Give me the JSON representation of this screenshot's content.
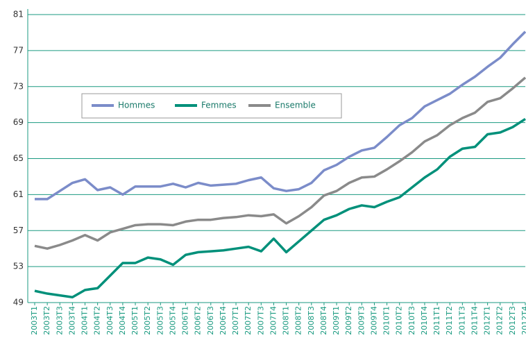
{
  "chart_data": {
    "type": "line",
    "categories": [
      "2003T1",
      "2003T2",
      "2003T3",
      "2003T4",
      "2004T1",
      "2004T2",
      "2004T3",
      "2004T4",
      "2005T1",
      "2005T2",
      "2005T3",
      "2005T4",
      "2006T1",
      "2006T2",
      "2006T3",
      "2006T4",
      "2007T1",
      "2007T2",
      "2007T3",
      "2007T4",
      "2008T1",
      "2008T2",
      "2008T3",
      "2008T4",
      "2009T1",
      "2009T2",
      "2009T3",
      "2009T4",
      "2010T1",
      "2010T2",
      "2010T3",
      "2010T4",
      "2011T1",
      "2011T2",
      "2011T3",
      "2011T4",
      "2012T1",
      "2012T2",
      "2012T3",
      "2012T4"
    ],
    "series": [
      {
        "name": "Hommes",
        "color": "#7b8cc9",
        "values": [
          60.5,
          60.5,
          61.4,
          62.3,
          62.7,
          61.5,
          61.8,
          61.0,
          61.9,
          61.9,
          61.9,
          62.2,
          61.8,
          62.3,
          62.0,
          62.1,
          62.2,
          62.6,
          62.9,
          61.7,
          61.4,
          61.6,
          62.3,
          63.7,
          64.3,
          65.2,
          65.9,
          66.2,
          67.4,
          68.7,
          69.5,
          70.8,
          71.5,
          72.2,
          73.2,
          74.1,
          75.2,
          76.2,
          77.7,
          79.1
        ]
      },
      {
        "name": "Femmes",
        "color": "#00907a",
        "values": [
          50.3,
          50.0,
          49.8,
          49.6,
          50.4,
          50.6,
          52.0,
          53.4,
          53.4,
          54.0,
          53.8,
          53.2,
          54.3,
          54.6,
          54.7,
          54.8,
          55.0,
          55.2,
          54.7,
          56.1,
          54.6,
          55.8,
          57.0,
          58.2,
          58.7,
          59.4,
          59.8,
          59.6,
          60.2,
          60.7,
          61.8,
          62.9,
          63.8,
          65.2,
          66.1,
          66.3,
          67.7,
          67.9,
          68.5,
          69.4
        ]
      },
      {
        "name": "Ensemble",
        "color": "#8a8a8a",
        "values": [
          55.3,
          55.0,
          55.4,
          55.9,
          56.5,
          55.9,
          56.8,
          57.2,
          57.6,
          57.7,
          57.7,
          57.6,
          58.0,
          58.2,
          58.2,
          58.4,
          58.5,
          58.7,
          58.6,
          58.8,
          57.8,
          58.6,
          59.6,
          60.9,
          61.4,
          62.3,
          62.9,
          63.0,
          63.8,
          64.7,
          65.7,
          66.9,
          67.6,
          68.7,
          69.5,
          70.1,
          71.3,
          71.7,
          72.8,
          74.0
        ]
      }
    ],
    "ylim": [
      49,
      81
    ],
    "yticks": [
      49,
      53,
      57,
      61,
      65,
      69,
      73,
      77,
      81
    ],
    "grid": true,
    "grid_color": "#1a9a80"
  }
}
